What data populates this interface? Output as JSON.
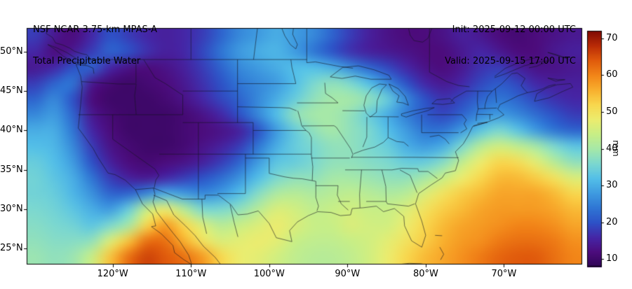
{
  "header": {
    "model_line": "NSF NCAR 3.75-km MPAS-A",
    "product_line": "Total Precipitable Water",
    "init_line": "Init: 2025-09-12 00:00 UTC",
    "valid_line": "Valid: 2025-09-15 17:00 UTC"
  },
  "chart_data": {
    "type": "heatmap",
    "title": "Total Precipitable Water",
    "units": "mm",
    "lon_range": [
      -131,
      -60
    ],
    "lat_range": [
      23,
      53
    ],
    "x_ticks": [
      {
        "lon": -120,
        "label": "120°W"
      },
      {
        "lon": -110,
        "label": "110°W"
      },
      {
        "lon": -100,
        "label": "100°W"
      },
      {
        "lon": -90,
        "label": "90°W"
      },
      {
        "lon": -80,
        "label": "80°W"
      },
      {
        "lon": -70,
        "label": "70°W"
      }
    ],
    "y_ticks": [
      {
        "lat": 50,
        "label": "50°N"
      },
      {
        "lat": 45,
        "label": "45°N"
      },
      {
        "lat": 40,
        "label": "40°N"
      },
      {
        "lat": 35,
        "label": "35°N"
      },
      {
        "lat": 30,
        "label": "30°N"
      },
      {
        "lat": 25,
        "label": "25°N"
      }
    ],
    "colorbar": {
      "label": "mm",
      "ticks": [
        10,
        20,
        30,
        40,
        50,
        60,
        70
      ],
      "vmin": 8,
      "vmax": 72
    },
    "colormap_stops": [
      [
        8,
        "#2f0456"
      ],
      [
        12,
        "#4c0c7c"
      ],
      [
        16,
        "#4526a6"
      ],
      [
        20,
        "#2d52c7"
      ],
      [
        24,
        "#2f76d4"
      ],
      [
        28,
        "#3f9be0"
      ],
      [
        32,
        "#53bfe8"
      ],
      [
        36,
        "#7cd8d0"
      ],
      [
        40,
        "#a6e8a8"
      ],
      [
        44,
        "#c8ee86"
      ],
      [
        48,
        "#ecec6e"
      ],
      [
        52,
        "#f8d74e"
      ],
      [
        56,
        "#f8b02e"
      ],
      [
        60,
        "#f28518"
      ],
      [
        64,
        "#e05a0c"
      ],
      [
        68,
        "#b92b06"
      ],
      [
        72,
        "#7f0a04"
      ]
    ],
    "grid": {
      "ncols": 30,
      "nrows": 15,
      "origin": "northwest",
      "values_mm": [
        [
          18,
          14,
          12,
          16,
          20,
          18,
          16,
          15,
          16,
          18,
          22,
          26,
          28,
          30,
          28,
          26,
          22,
          18,
          15,
          13,
          12,
          12,
          13,
          15,
          14,
          12,
          11,
          12,
          13,
          14
        ],
        [
          16,
          12,
          14,
          18,
          22,
          20,
          17,
          15,
          16,
          19,
          24,
          28,
          30,
          31,
          28,
          24,
          20,
          17,
          15,
          14,
          13,
          12,
          12,
          14,
          16,
          14,
          12,
          12,
          14,
          15
        ],
        [
          14,
          16,
          20,
          22,
          16,
          13,
          12,
          13,
          15,
          18,
          22,
          26,
          28,
          30,
          32,
          32,
          30,
          26,
          22,
          19,
          16,
          13,
          12,
          14,
          17,
          18,
          15,
          13,
          13,
          14
        ],
        [
          18,
          22,
          24,
          14,
          11,
          10,
          11,
          12,
          14,
          17,
          20,
          24,
          26,
          28,
          32,
          36,
          38,
          36,
          32,
          26,
          20,
          16,
          14,
          16,
          19,
          21,
          19,
          16,
          15,
          15
        ],
        [
          22,
          26,
          20,
          12,
          10,
          10,
          10,
          11,
          13,
          16,
          19,
          22,
          26,
          30,
          34,
          38,
          40,
          40,
          38,
          34,
          26,
          20,
          17,
          19,
          22,
          24,
          22,
          19,
          17,
          16
        ],
        [
          26,
          28,
          22,
          14,
          11,
          10,
          10,
          10,
          11,
          13,
          16,
          20,
          26,
          32,
          38,
          40,
          40,
          38,
          34,
          30,
          25,
          21,
          19,
          22,
          26,
          28,
          26,
          23,
          20,
          18
        ],
        [
          30,
          30,
          24,
          16,
          12,
          10,
          10,
          10,
          11,
          12,
          13,
          15,
          20,
          28,
          34,
          38,
          40,
          38,
          36,
          32,
          28,
          24,
          24,
          28,
          33,
          36,
          33,
          28,
          24,
          22
        ],
        [
          32,
          31,
          26,
          18,
          13,
          11,
          10,
          10,
          11,
          13,
          15,
          18,
          24,
          30,
          34,
          36,
          38,
          38,
          36,
          34,
          30,
          28,
          30,
          36,
          42,
          45,
          43,
          40,
          36,
          33
        ],
        [
          34,
          32,
          28,
          20,
          15,
          12,
          11,
          12,
          13,
          15,
          18,
          22,
          28,
          33,
          34,
          36,
          38,
          38,
          37,
          36,
          34,
          34,
          37,
          43,
          48,
          52,
          51,
          47,
          42,
          38
        ],
        [
          35,
          33,
          30,
          24,
          18,
          15,
          14,
          16,
          18,
          20,
          23,
          27,
          32,
          36,
          38,
          38,
          40,
          40,
          39,
          38,
          38,
          40,
          44,
          48,
          52,
          55,
          55,
          53,
          50,
          46
        ],
        [
          35,
          34,
          31,
          27,
          22,
          22,
          26,
          30,
          28,
          26,
          28,
          32,
          37,
          41,
          42,
          41,
          42,
          43,
          42,
          41,
          42,
          46,
          50,
          53,
          55,
          57,
          57,
          57,
          55,
          52
        ],
        [
          36,
          35,
          33,
          30,
          28,
          34,
          44,
          48,
          42,
          36,
          36,
          38,
          42,
          46,
          45,
          43,
          44,
          45,
          44,
          44,
          46,
          50,
          53,
          55,
          57,
          58,
          58,
          58,
          57,
          55
        ],
        [
          37,
          36,
          35,
          33,
          36,
          40,
          52,
          58,
          52,
          46,
          42,
          44,
          46,
          48,
          46,
          44,
          44,
          46,
          45,
          45,
          48,
          52,
          55,
          57,
          58,
          59,
          60,
          60,
          59,
          57
        ],
        [
          38,
          37,
          37,
          38,
          46,
          54,
          62,
          62,
          56,
          50,
          46,
          47,
          48,
          47,
          44,
          43,
          43,
          44,
          45,
          47,
          50,
          53,
          56,
          58,
          59,
          61,
          62,
          62,
          61,
          59
        ],
        [
          39,
          38,
          39,
          44,
          54,
          62,
          66,
          64,
          62,
          58,
          52,
          48,
          47,
          45,
          43,
          42,
          42,
          43,
          45,
          48,
          52,
          55,
          57,
          59,
          61,
          63,
          64,
          64,
          62,
          60
        ]
      ]
    },
    "geography": {
      "line_color": "#14141e",
      "lines": [
        "-124.7,48.4 -124.1,46.9 -123.9,45.5 -124.1,43.3 -124.4,40.3 -123.8,39.5 -122.5,37.7 -121.9,36.6 -120.6,34.6 -119.7,34.4 -118.4,33.7 -117.1,32.5",
        "-117.1,32.5 -114.8,32.7 -111.1,31.3 -108.2,31.3 -108.2,31.8 -106.5,31.8 -104.9,30.6 -104,29.3 -102.8,29.4 -101.4,29.8 -100,28.2 -99.1,26.4 -97.1,25.9",
        "-97.1,25.9 -97.4,27.3 -96.4,28.4 -95,29.2 -93.8,29.7 -92.1,29.6 -90.9,29.2 -89.6,29.3 -89.4,30.1 -88,30.2 -86.3,30.4 -85.4,29.7 -84,30.1 -82.8,29.1 -82.7,27.9 -81.8,26 -80.5,25.2 -80,26.7 -80.5,28.5 -81.3,30.7 -80.9,32 -79.3,33.1 -77.9,34 -77.5,34.6 -76.2,34.9 -75.8,36.2 -76.2,37.3 -75.2,38.3 -74.6,39.3 -74,40.5 -72.3,41 -70.7,41.6 -70,42 -70.8,42.7 -70.5,43.3 -69.2,43.9 -68.2,44.4 -67,44.8 -67.4,45.2 -67.8,45.7 -67.3,46.6 -68.3,47.3 -69,47.2 -70.3,45.9 -71.5,45",
        "-71.5,45 -74.8,45 -76.4,44.1 -76.8,43.6",
        "-123.3,49 -95.2,49",
        "-95.2,49 -95.2,48.6 -94.1,48.7 -92.5,48.4 -90.9,48.1 -89.3,47.9",
        "-92.2,46.8 -90.7,46.6 -89,46.9 -87,46.5 -84.4,46.5 -84.7,47 -86.6,47.7 -88.6,48.2 -90.6,48 -92.2,46.8",
        "-87.1,41.7 -86.3,42.3 -86.2,43.8 -85.6,45.2 -85,45.8 -85.9,45.9 -86.9,45.4 -87.6,44.4 -87.9,43.2 -87.6,42.2 -87.1,41.7",
        "-84.7,45.9 -83.5,45.3 -82.6,44.3 -82.2,43.2 -82.9,43.5 -83.7,43.6 -83.4,44.4 -84.2,45 -84.7,45.9",
        "-83.1,42.1 -81.6,42.5 -80,42.8 -78.9,42.9 -79.8,42.5 -81.3,42.1 -82.5,41.7 -83.1,41.9 -83.1,42.1",
        "-79.2,43.4 -77.8,43.3 -76.3,43.5 -76.9,44.05 -78.6,43.9 -79.2,43.4",
        "-124.4,42 -111.05,42",
        "-120,42 -120,38.9 -114.6,35.1",
        "-114.6,35.1 -114.1,34.3 -114.5,33.7 -114.7,32.7",
        "-124,46.2 -119.3,45.9 -117,45.9",
        "-117.03,49 -117.03,46",
        "-117,45.9 -117.2,44.4 -117,42",
        "-116.05,49 -114.6,46.7 -113.2,45.9 -111.4,44.7 -111.05,44.5",
        "-111.05,44.5 -111.05,42",
        "-111.05,45 -104.05,45",
        "-111.05,41 -102.05,41",
        "-104.05,49 -104.05,41",
        "-104.05,45.94 -96.6,45.94",
        "-104.05,43 -98.5,42.9 -97.4,42.85 -96.5,42.5",
        "-102.05,40 -95.3,40",
        "-114.05,37 -94.62,37",
        "-109.05,41 -109.05,31.3",
        "-102.05,41 -102.05,37",
        "-103.04,37 -103.04,32",
        "-103.04,32 -106.62,32",
        "-103.04,36.5 -100,36.5",
        "-100,36.5 -100,34.56",
        "-100,34.56 -98.1,34.13 -96.9,33.94 -95.8,33.87 -94.5,33.64",
        "-94.5,33.64 -94.04,33.55 -94.04,31.5 -93.7,30.4 -93.9,29.8",
        "-94.62,37 -94.43,35.4 -94.5,33.64",
        "-94.62,36.5 -89.7,36.5",
        "-89.5,36.6 -81.7,36.6 -75.8,36.55",
        "-90.3,35 -84.3,35",
        "-94.04,33 -91.2,33",
        "-91.2,33 -91.3,31.8 -90.8,30.7 -89.9,29.9",
        "-91.2,31 -89.7,31",
        "-87.6,31 -85.05,31 -84.9,30.7 -82.2,30.4 -81.4,30.7",
        "-88.2,35 -88.45,31.9 -88.4,30.2",
        "-85.6,35 -85.1,32.9 -85.05,31",
        "-83.3,35 -82,34.3 -81.1,32.1",
        "-84.3,35 -83.1,35.2 -81,35.15 -80.9,34.8 -79.7,34.8 -78.5,33.9",
        "-89.2,37.05 -88,37.5 -86.5,37.9 -85.4,38.5 -84.8,39.1 -83.7,38.6 -82.8,38.5 -82.2,38",
        "-77,38.3 -77.5,38.9 -78.3,39.4 -79.48,39.2",
        "-80.52,39.72 -75.8,39.72",
        "-80.52,42 -80.52,39.72",
        "-79.76,42 -75.35,42",
        "-75.35,42 -74.8,41.35 -75.1,40.85 -74.75,40.2 -75.55,39.7",
        "-73.35,45 -73.4,43.6 -73.3,42.7 -73.5,42 -73.55,41.2",
        "-73.5,42.05 -71.4,42.02",
        "-73.3,42.75 -70.9,42.85",
        "-71.8,42.02 -71.8,41.35",
        "-71.5,45.01 -72.1,44.3 -72.4,43.3 -72.45,42.75",
        "-71.1,45.3 -70.95,43.5",
        "-90.64,42.51 -87.8,42.49",
        "-87.52,41.71 -87.53,39.15 -88.03,37.9",
        "-84.81,41.71 -84.81,39.1",
        "-87.2,41.76 -83.45,41.73",
        "-96.45,43.5 -91.2,43.5",
        "-92.9,46.05 -92.8,44.7 -91.9,44.1 -91.2,43.5",
        "-95.77,40.58 -91.7,40.6 -91.4,40.38",
        "-91.4,40.38 -90.4,38.9 -89.6,37.7 -89.3,36.97 -89.5,36.5",
        "-96.6,45.94 -96.85,47 -97.1,48 -97.23,49",
        "-95.3,40 -94.9,39.7 -94.61,39.1 -94.61,37",
        "-95.3,40 -95.85,40.6 -96.05,41.5 -96.35,42.5",
        "-110,53 -110,49",
        "-101.5,53 -102,49",
        "-95.2,52.9 -95.2,49",
        "-79.52,53 -79.52,47.4 -77.3,46.2 -75.8,45.7 -74.4,45.55",
        "-71.2,46.85 -69.8,47.9 -68,48.65 -65.9,49.25",
        "-71.2,46.7 -69.8,47.2 -67.4,48.2 -65.3,48.75 -64.3,48.85",
        "-64.3,48.85 -65.8,48.15 -66.8,47.95",
        "-67,44.8 -66,45 -65,45.3 -64.3,45.65 -63.4,45.85",
        "-66.1,43.7 -64.2,44.15 -62.5,44.95 -61.2,45.5 -61.5,45.95 -63.2,45.8 -64.6,45.35 -65.8,44.65 -66.1,43.7",
        "-64.4,46.65 -63.1,46.45 -62.2,46.45 -63.4,46.25 -64.4,46.65",
        "-64.4,49.9 -62.6,49.3 -61.8,49.1 -63.4,49.65 -64.4,49.9",
        "-123.4,48.4 -125,48.7 -126.3,49.4 -127.4,50.3 -128.3,50.9 -127.2,50.5 -125.9,49.9 -124.6,49.1 -123.4,48.4",
        "-122.8,49 -123.3,49.6 -124,49.75 -124.9,50.05 -125.5,50.45 -126.4,50.85 -127.3,51.1 -127.7,51.8 -128.5,52.3 -128.2,53",
        "-124.7,48.4 -123.2,48.2 -122.5,47.9 -122.4,47.2",
        "-82.2,53 -82,52.1 -81.5,51.4 -80.4,51.2 -79.7,51.7 -79.4,52.5 -79.2,53",
        "-98.4,53 -98,52 -97.3,50.9 -96.6,50.35 -96.4,50.9 -97,52.2 -96.9,53",
        "-117.1,32.5 -116.2,30.7 -114.9,29.4 -114.5,27.9 -115.05,27.8 -113.8,26.9 -112.3,25.4 -112.1,24.5 -110.9,23.6 -109.9,23 -110.3,24.2 -111.4,25.9 -112.3,27 -113.4,28.4 -114.4,29.7 -114.85,30.95 -114.6,31.9 -114.8,32.7",
        "-114.8,31.8 -113.1,31.1 -112.2,29.3 -110.7,27.9 -109.5,26.7 -108.4,25.3 -106.9,23.9 -106.2,23",
        "-108.6,31.3 -108.5,29 -108,26.9",
        "-105,30.6 -104.5,28.4 -104,26.5",
        "-83.5,23 -82.1,23.15 -80.6,23.1 -79.9,22.95",
        "-78.8,26.7 -77.9,26.65",
        "-78.2,25.2 -77.7,24.3 -78.1,23.6",
        "-73.9,40.6 -72.1,41.05 -73.4,40.9"
      ]
    }
  }
}
